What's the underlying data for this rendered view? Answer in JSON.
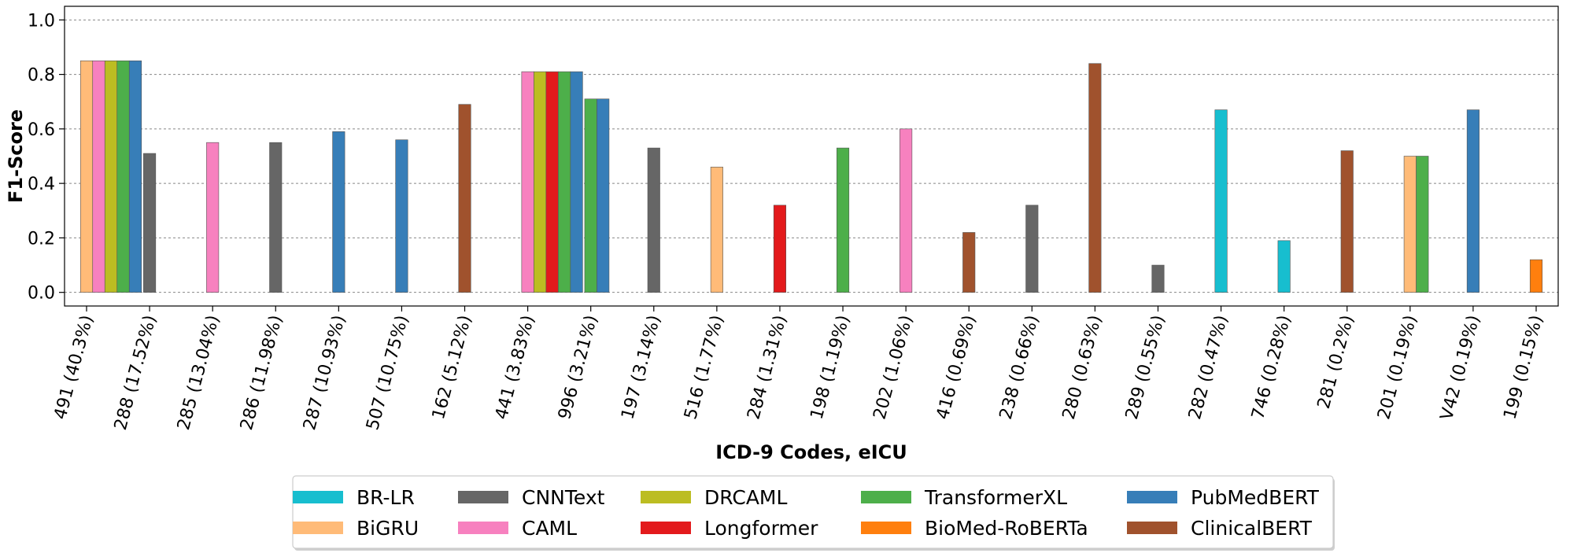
{
  "chart_data": {
    "type": "bar",
    "title": "",
    "xlabel": "ICD-9 Codes, eICU",
    "ylabel": "F1-Score",
    "ylim": [
      -0.05,
      1.05
    ],
    "yticks": [
      "0.0",
      "0.2",
      "0.4",
      "0.6",
      "0.8",
      "1.0"
    ],
    "grid": "y-dotted",
    "legend_position": "bottom-center",
    "categories": [
      "491 (40.3%)",
      "288 (17.52%)",
      "285 (13.04%)",
      "286 (11.98%)",
      "287 (10.93%)",
      "507 (10.75%)",
      "162 (5.12%)",
      "441 (3.83%)",
      "996 (3.21%)",
      "197 (3.14%)",
      "516 (1.77%)",
      "284 (1.31%)",
      "198 (1.19%)",
      "202 (1.06%)",
      "416 (0.69%)",
      "238 (0.66%)",
      "280 (0.63%)",
      "289 (0.55%)",
      "282 (0.47%)",
      "746 (0.28%)",
      "281 (0.2%)",
      "201 (0.19%)",
      "V42 (0.19%)",
      "199 (0.15%)"
    ],
    "series": [
      {
        "name": "BR-LR",
        "color": "#17becf",
        "values": [
          0,
          0,
          0,
          0,
          0,
          0,
          0,
          0,
          0,
          0,
          0,
          0,
          0,
          0,
          0,
          0,
          0,
          0,
          0.67,
          0.19,
          0,
          0,
          0,
          0
        ]
      },
      {
        "name": "BiGRU",
        "color": "#ffbb78",
        "values": [
          0.85,
          0,
          0,
          0,
          0,
          0,
          0,
          0,
          0,
          0,
          0.46,
          0,
          0,
          0,
          0,
          0,
          0,
          0,
          0,
          0,
          0,
          0.5,
          0,
          0
        ]
      },
      {
        "name": "CNNText",
        "color": "#666666",
        "values": [
          0,
          0.51,
          0,
          0.55,
          0,
          0,
          0,
          0,
          0,
          0.53,
          0,
          0,
          0,
          0,
          0,
          0.32,
          0,
          0.1,
          0,
          0,
          0,
          0,
          0,
          0
        ]
      },
      {
        "name": "CAML",
        "color": "#f781bf",
        "values": [
          0.85,
          0,
          0.55,
          0,
          0,
          0,
          0,
          0.81,
          0,
          0,
          0,
          0,
          0,
          0.6,
          0,
          0,
          0,
          0,
          0,
          0,
          0,
          0,
          0,
          0
        ]
      },
      {
        "name": "DRCAML",
        "color": "#bcbd22",
        "values": [
          0.85,
          0,
          0,
          0,
          0,
          0,
          0,
          0.81,
          0,
          0,
          0,
          0,
          0,
          0,
          0,
          0,
          0,
          0,
          0,
          0,
          0,
          0,
          0,
          0
        ]
      },
      {
        "name": "Longformer",
        "color": "#e31a1c",
        "values": [
          0,
          0,
          0,
          0,
          0,
          0,
          0,
          0.81,
          0,
          0,
          0,
          0.32,
          0,
          0,
          0,
          0,
          0,
          0,
          0,
          0,
          0,
          0,
          0,
          0
        ]
      },
      {
        "name": "TransformerXL",
        "color": "#4daf4a",
        "values": [
          0.85,
          0,
          0,
          0,
          0,
          0,
          0,
          0.81,
          0.71,
          0,
          0,
          0,
          0.53,
          0,
          0,
          0,
          0,
          0,
          0,
          0,
          0,
          0.5,
          0,
          0
        ]
      },
      {
        "name": "BioMed-RoBERTa",
        "color": "#ff7f0e",
        "values": [
          0,
          0,
          0,
          0,
          0,
          0,
          0,
          0,
          0,
          0,
          0,
          0,
          0,
          0,
          0,
          0,
          0,
          0,
          0,
          0,
          0,
          0,
          0,
          0.12
        ]
      },
      {
        "name": "PubMedBERT",
        "color": "#377eb8",
        "values": [
          0.85,
          0,
          0,
          0,
          0.59,
          0.56,
          0,
          0.81,
          0.71,
          0,
          0,
          0,
          0,
          0,
          0,
          0,
          0,
          0,
          0,
          0,
          0,
          0,
          0.67,
          0
        ]
      },
      {
        "name": "ClinicalBERT",
        "color": "#a0522d",
        "values": [
          0,
          0,
          0,
          0,
          0,
          0,
          0.69,
          0,
          0,
          0,
          0,
          0,
          0,
          0,
          0.22,
          0,
          0.84,
          0,
          0,
          0,
          0.52,
          0,
          0,
          0
        ]
      }
    ]
  },
  "legend": {
    "columns": 5,
    "order": [
      "BR-LR",
      "BiGRU",
      "CNNText",
      "CAML",
      "DRCAML",
      "Longformer",
      "TransformerXL",
      "BioMed-RoBERTa",
      "PubMedBERT",
      "ClinicalBERT"
    ]
  }
}
